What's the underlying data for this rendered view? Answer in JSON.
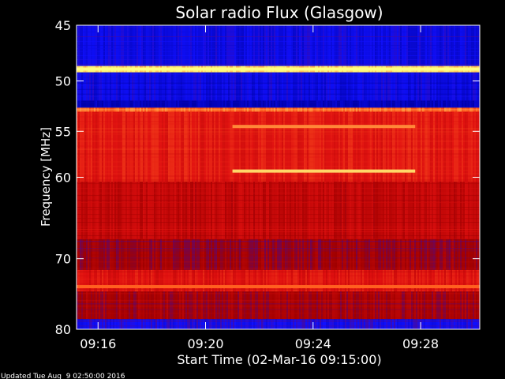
{
  "chart_data": {
    "type": "heatmap",
    "title": "Solar radio Flux (Glasgow)",
    "xlabel": "Start Time (02-Mar-16 09:15:00)",
    "ylabel": "Frequency [MHz]",
    "footer": "Updated Tue Aug  9 02:50:00 2016",
    "x_ticks": [
      "09:16",
      "09:20",
      "09:24",
      "09:28"
    ],
    "x_tick_minutes": [
      1,
      5,
      9,
      13
    ],
    "xlim_minutes": [
      0.2,
      15.2
    ],
    "y_ticks": [
      45,
      50,
      55,
      60,
      70,
      80
    ],
    "ylim": [
      45,
      80
    ],
    "y_scale": "log",
    "colormap": [
      "#0000a0",
      "#1010ff",
      "#a00000",
      "#e01010",
      "#ff6020",
      "#ffff80"
    ],
    "bands": [
      {
        "from": 45,
        "to": 48.6,
        "level": 0.15
      },
      {
        "from": 48.6,
        "to": 49.2,
        "level": 0.95
      },
      {
        "from": 49.2,
        "to": 51.9,
        "level": 0.15
      },
      {
        "from": 51.9,
        "to": 52.6,
        "level": 0.05
      },
      {
        "from": 52.6,
        "to": 53.0,
        "level": 0.8
      },
      {
        "from": 53.0,
        "to": 60.5,
        "level": 0.62
      },
      {
        "from": 60.5,
        "to": 67.5,
        "level": 0.5
      },
      {
        "from": 67.5,
        "to": 71.5,
        "level": 0.4
      },
      {
        "from": 71.5,
        "to": 74.5,
        "level": 0.6
      },
      {
        "from": 74.5,
        "to": 78.5,
        "level": 0.42
      },
      {
        "from": 78.5,
        "to": 80,
        "level": 0.2
      }
    ],
    "features": [
      {
        "freq": 48.9,
        "start_min": 0.2,
        "end_min": 15.2,
        "level": 1.0
      },
      {
        "freq": 54.5,
        "start_min": 6.0,
        "end_min": 12.8,
        "level": 0.85
      },
      {
        "freq": 59.3,
        "start_min": 6.0,
        "end_min": 12.8,
        "level": 0.95
      },
      {
        "freq": 73.8,
        "start_min": 0.2,
        "end_min": 15.2,
        "level": 0.8
      }
    ]
  }
}
